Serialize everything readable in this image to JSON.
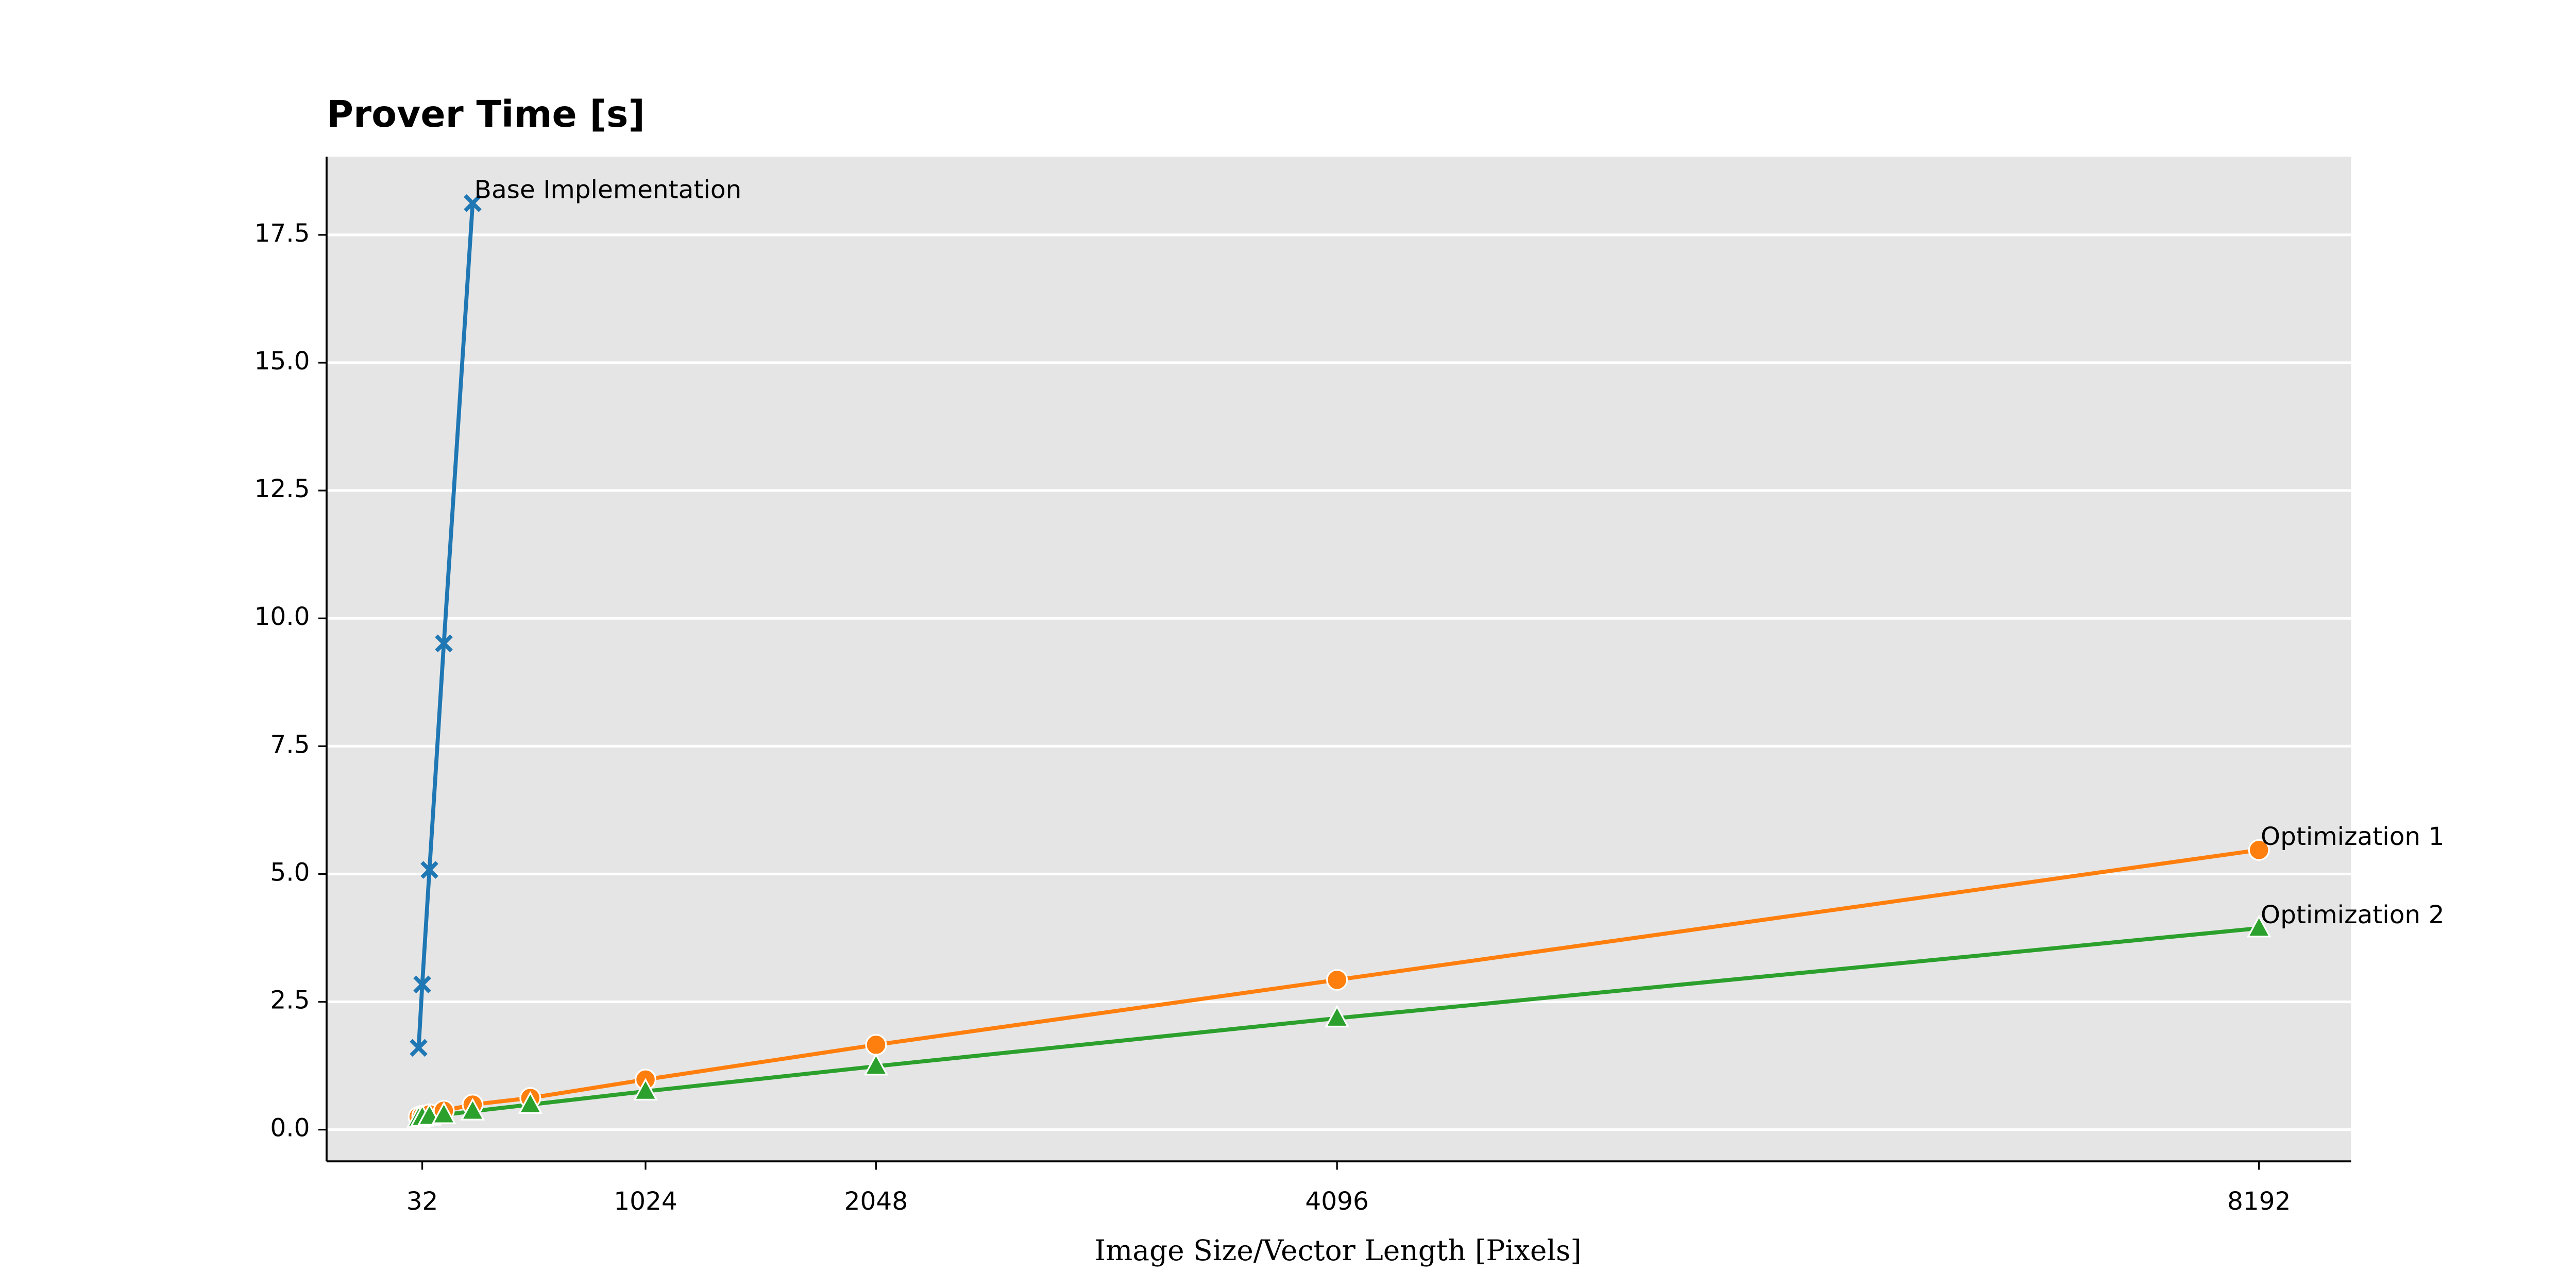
{
  "chart_data": {
    "type": "line",
    "title": "Prover Time [s]",
    "xlabel": "Image Size/Vector Length [Pixels]",
    "xlim": [
      -393,
      8601
    ],
    "xticks": [
      32,
      1024,
      2048,
      4096,
      8192
    ],
    "ylim": [
      -0.62,
      19.03
    ],
    "yticks": [
      {
        "value": 0,
        "label": "0.0"
      },
      2.5,
      {
        "value": 5,
        "label": "5.0"
      },
      7.5,
      {
        "value": 10,
        "label": "10.0"
      },
      12.5,
      {
        "value": 15,
        "label": "15.0"
      },
      17.5
    ],
    "grid": true,
    "background": "#e5e5e5",
    "series": [
      {
        "name": "Base Implementation",
        "color": "#1f77b4",
        "marker": "x",
        "x": [
          16,
          32,
          64,
          128,
          256
        ],
        "values": [
          1.6,
          2.84,
          5.08,
          9.51,
          18.12
        ]
      },
      {
        "name": "Optimization 1",
        "color": "#ff7f0e",
        "marker": "circle",
        "x": [
          16,
          32,
          64,
          128,
          256,
          512,
          1024,
          2048,
          4096,
          8192
        ],
        "values": [
          0.25,
          0.27,
          0.3,
          0.37,
          0.49,
          0.62,
          0.98,
          1.66,
          2.93,
          5.47
        ]
      },
      {
        "name": "Optimization 2",
        "color": "#2ca02c",
        "marker": "triangle",
        "x": [
          16,
          32,
          64,
          128,
          256,
          512,
          1024,
          2048,
          4096,
          8192
        ],
        "values": [
          0.22,
          0.24,
          0.26,
          0.29,
          0.36,
          0.49,
          0.75,
          1.24,
          2.18,
          3.94
        ]
      }
    ]
  }
}
